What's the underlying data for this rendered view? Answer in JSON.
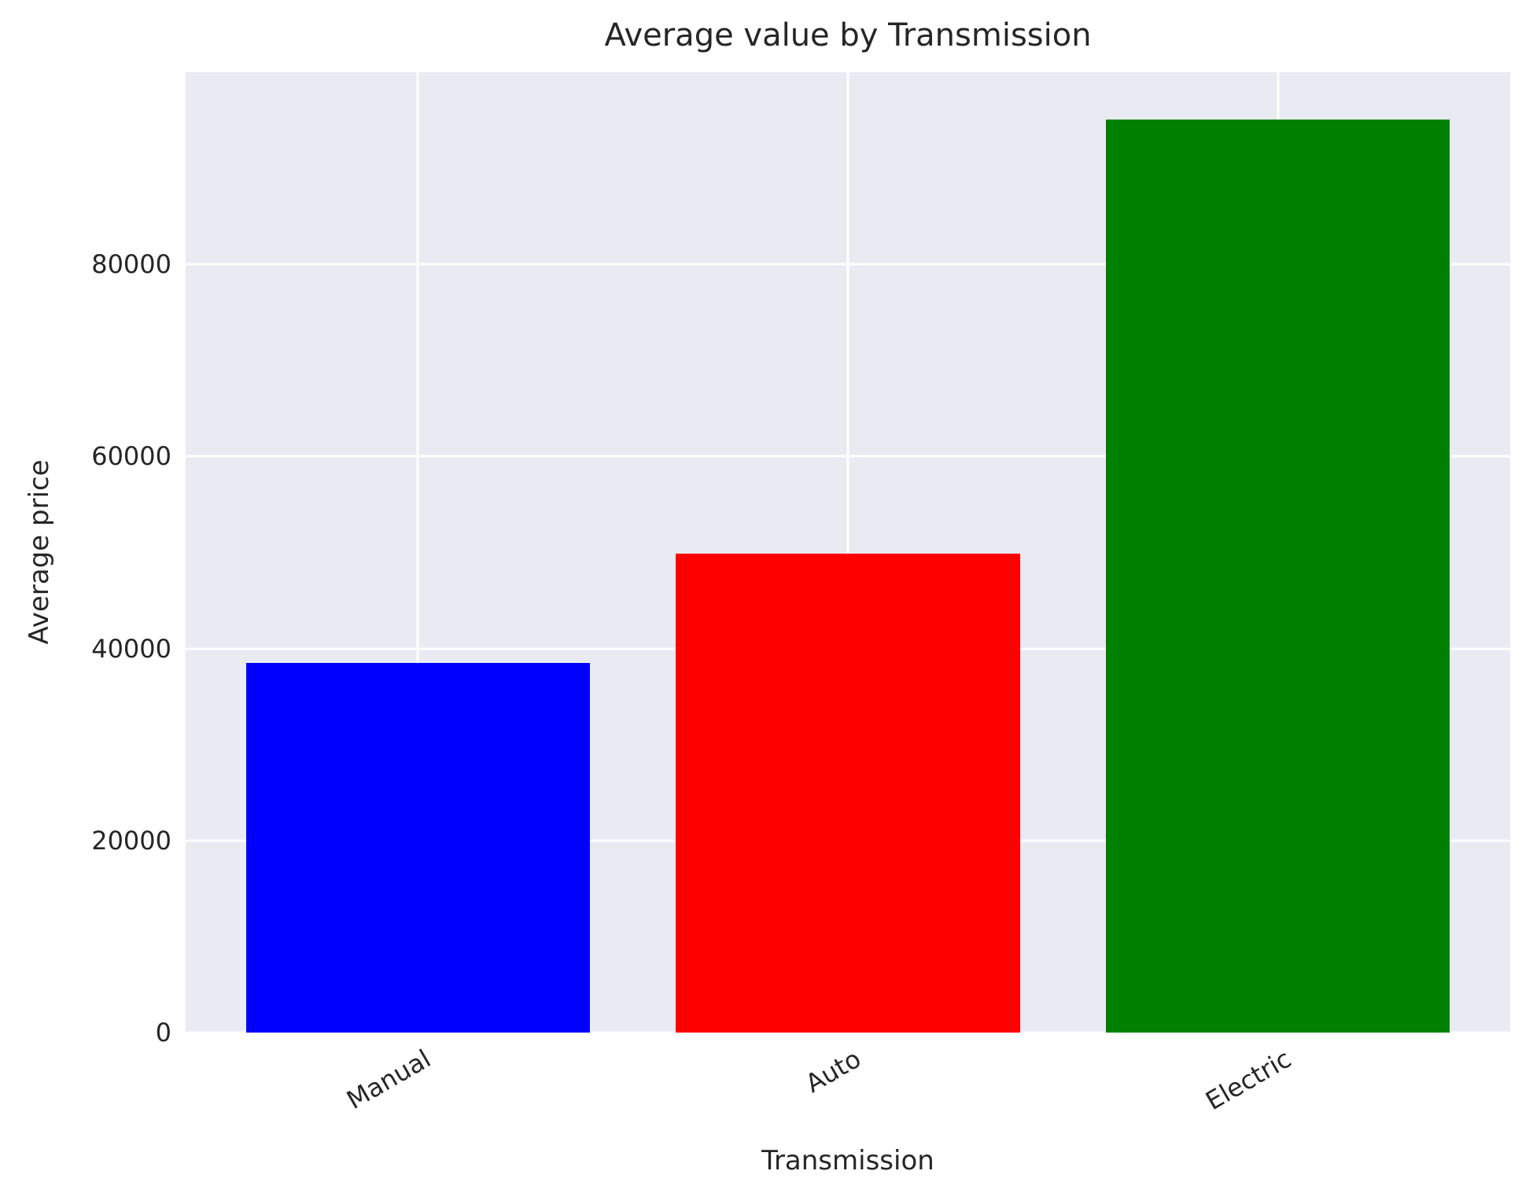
{
  "chart_data": {
    "type": "bar",
    "title": "Average value by Transmission",
    "xlabel": "Transmission",
    "ylabel": "Average price",
    "categories": [
      "Manual",
      "Auto",
      "Electric"
    ],
    "values": [
      38500,
      49900,
      95100
    ],
    "colors": [
      "#0000ff",
      "#ff0000",
      "#008000"
    ],
    "ylim": [
      0,
      100000
    ],
    "yticks": [
      0,
      20000,
      40000,
      60000,
      80000
    ],
    "ytick_labels": [
      "0",
      "20000",
      "40000",
      "60000",
      "80000"
    ],
    "xtick_rotation": 30,
    "grid": true,
    "background": "#eaeaf2",
    "legend": null
  }
}
